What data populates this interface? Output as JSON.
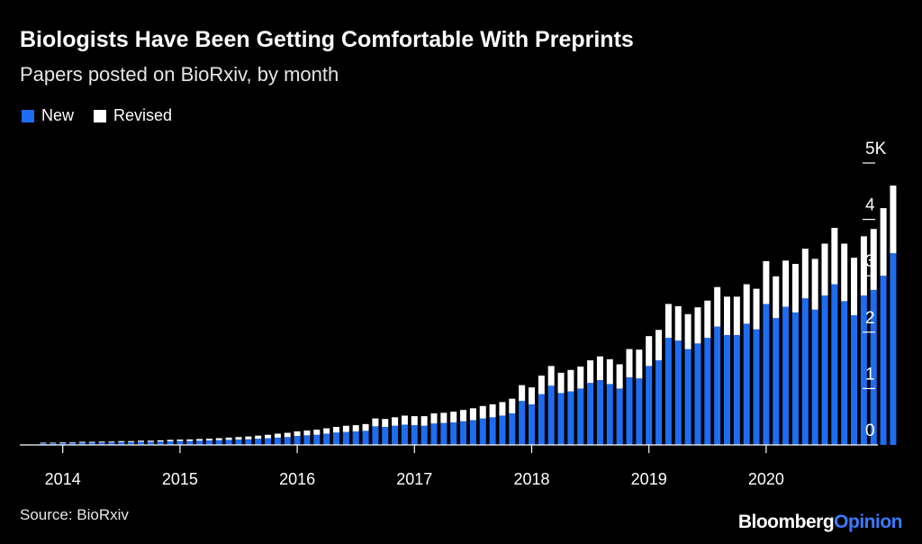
{
  "header": {
    "title": "Biologists Have Been Getting Comfortable With Preprints",
    "subtitle": "Papers posted on BioRxiv, by month"
  },
  "footer": {
    "source": "Source: BioRxiv",
    "logo_part1": "Bloomberg",
    "logo_part2": "Opinion"
  },
  "colors": {
    "new": "#1e6cf0",
    "revised": "#ffffff",
    "background": "#000000",
    "axis": "#ffffff"
  },
  "chart_data": {
    "type": "bar",
    "stacked": true,
    "x_start": "2013-11",
    "x_end": "2020-03",
    "x_ticks": [
      "2014",
      "2015",
      "2016",
      "2017",
      "2018",
      "2019",
      "2020"
    ],
    "y_ticks": [
      "0",
      "1",
      "2",
      "3",
      "4",
      "5K"
    ],
    "ylim": [
      0,
      5000
    ],
    "legend": {
      "position": "top-left",
      "items": [
        "New",
        "Revised"
      ]
    },
    "series": [
      {
        "name": "New",
        "values": [
          30,
          30,
          35,
          35,
          40,
          40,
          45,
          45,
          50,
          50,
          55,
          55,
          60,
          65,
          70,
          70,
          75,
          80,
          85,
          90,
          95,
          100,
          110,
          120,
          130,
          140,
          160,
          170,
          180,
          200,
          220,
          230,
          240,
          250,
          330,
          320,
          340,
          360,
          350,
          340,
          380,
          390,
          400,
          420,
          440,
          470,
          490,
          520,
          560,
          780,
          720,
          900,
          1050,
          920,
          950,
          1000,
          1100,
          1150,
          1080,
          1000,
          1200,
          1180,
          1400,
          1500,
          1900,
          1850,
          1700,
          1800,
          1900,
          2100,
          1950,
          1950,
          2150,
          2050,
          2500,
          2250,
          2450,
          2350,
          2600,
          2400,
          2650,
          2850,
          2550,
          2300,
          2650,
          2750,
          3000,
          3400
        ]
      },
      {
        "name": "Revised",
        "values": [
          10,
          10,
          12,
          12,
          15,
          15,
          15,
          15,
          18,
          18,
          20,
          20,
          22,
          25,
          25,
          28,
          30,
          30,
          35,
          40,
          45,
          50,
          55,
          60,
          70,
          75,
          80,
          85,
          90,
          95,
          100,
          110,
          110,
          120,
          140,
          140,
          150,
          160,
          160,
          170,
          180,
          180,
          190,
          200,
          210,
          220,
          230,
          240,
          260,
          280,
          300,
          330,
          350,
          360,
          380,
          390,
          400,
          420,
          440,
          430,
          500,
          510,
          530,
          540,
          600,
          610,
          620,
          640,
          660,
          700,
          680,
          680,
          700,
          720,
          760,
          740,
          820,
          860,
          880,
          900,
          920,
          1000,
          1020,
          1020,
          1050,
          1080,
          1200,
          1200
        ]
      }
    ]
  }
}
